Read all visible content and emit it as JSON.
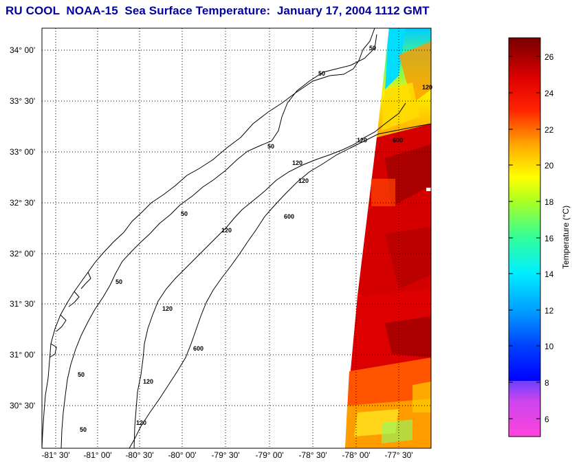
{
  "title": "RU COOL  NOAA-15  Sea Surface Temperature:  January 17, 2004 1112 GMT",
  "map": {
    "lat_labels": [
      "34° 00'",
      "33° 30'",
      "33° 00'",
      "32° 30'",
      "32° 00'",
      "31° 30'",
      "31° 00'",
      "30° 30'"
    ],
    "lon_labels": [
      "-81° 30'",
      "-81° 00'",
      "-80° 30'",
      "-80° 00'",
      "-79° 30'",
      "-79° 00'",
      "-78° 30'",
      "-78° 00'",
      "-77° 30'"
    ],
    "contour_labels": [
      "50",
      "50",
      "50",
      "50",
      "50",
      "50",
      "50",
      "120",
      "120",
      "120",
      "120",
      "120",
      "120",
      "120",
      "120",
      "600",
      "600",
      "600"
    ]
  },
  "colorbar": {
    "label": "Temperature (°C)",
    "ticks": [
      "26",
      "24",
      "22",
      "20",
      "18",
      "16",
      "14",
      "12",
      "10",
      "8",
      "6"
    ],
    "colors": {
      "c5": "#ff22dd",
      "c7": "#8844ff",
      "c8": "#0000ff",
      "c10": "#0088ff",
      "c13": "#00ffff",
      "c16": "#44ff77",
      "c19": "#ffff00",
      "c21": "#ffa500",
      "c24": "#ff0000",
      "c27": "#7a0000"
    }
  },
  "sst_colors": {
    "cold": "#00d0ff",
    "cool": "#44ff88",
    "mild": "#ffff00",
    "warm": "#ff6600",
    "hot": "#dd0000",
    "hottest": "#a00000"
  }
}
